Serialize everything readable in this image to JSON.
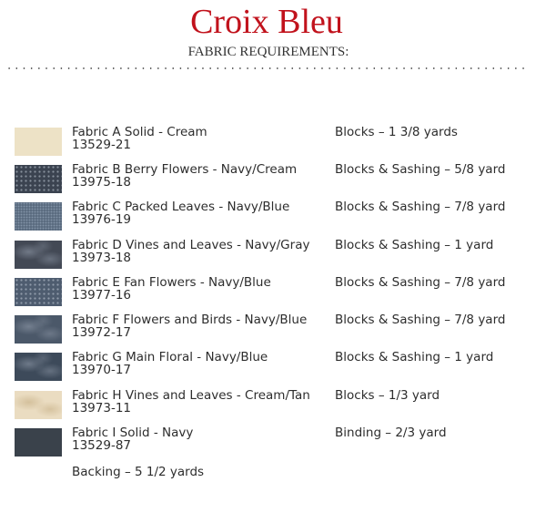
{
  "title": "Croix Bleu",
  "subtitle": "FABRIC REQUIREMENTS:",
  "fabrics": [
    {
      "name": "Fabric A Solid - Cream",
      "sku": "13529-21",
      "requirement": "Blocks – 1 3/8 yards",
      "color": "#ede2c6",
      "pattern": "solid"
    },
    {
      "name": "Fabric B Berry Flowers - Navy/Cream",
      "sku": "13975-18",
      "requirement": "Blocks & Sashing – 5/8 yard",
      "color": "#3b4350",
      "pattern": "dots"
    },
    {
      "name": "Fabric C Packed Leaves - Navy/Blue",
      "sku": "13976-19",
      "requirement": "Blocks & Sashing – 7/8 yard",
      "color": "#5b6c80",
      "pattern": "speckle"
    },
    {
      "name": "Fabric D Vines and Leaves - Navy/Gray",
      "sku": "13973-18",
      "requirement": "Blocks & Sashing – 1 yard",
      "color": "#434955",
      "pattern": "mottled"
    },
    {
      "name": "Fabric E Fan Flowers - Navy/Blue",
      "sku": "13977-16",
      "requirement": "Blocks & Sashing – 7/8 yard",
      "color": "#4e5c6f",
      "pattern": "dots"
    },
    {
      "name": "Fabric F Flowers and Birds - Navy/Blue",
      "sku": "13972-17",
      "requirement": "Blocks & Sashing – 7/8 yard",
      "color": "#4b5869",
      "pattern": "mottled"
    },
    {
      "name": "Fabric G Main Floral - Navy/Blue",
      "sku": "13970-17",
      "requirement": "Blocks & Sashing – 1 yard",
      "color": "#3d4a5a",
      "pattern": "mottled"
    },
    {
      "name": "Fabric H Vines and Leaves - Cream/Tan",
      "sku": "13973-11",
      "requirement": "Blocks – 1/3 yard",
      "color": "#eadcc1",
      "pattern": "mottled-light"
    },
    {
      "name": "Fabric I Solid - Navy",
      "sku": "13529-87",
      "requirement": "Binding – 2/3 yard",
      "color": "#3a424b",
      "pattern": "solid"
    }
  ],
  "backing": "Backing – 5 1/2 yards"
}
